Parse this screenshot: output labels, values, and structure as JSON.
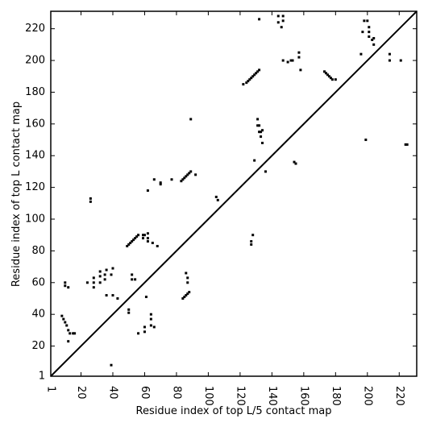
{
  "chart_data": {
    "type": "scatter",
    "xlabel": "Residue index of top L/5 contact map",
    "ylabel": "Residue index of top L contact map",
    "xlim": [
      1,
      231
    ],
    "ylim": [
      1,
      231
    ],
    "xticks": [
      1,
      20,
      40,
      60,
      80,
      100,
      120,
      140,
      160,
      180,
      200,
      220
    ],
    "yticks": [
      1,
      20,
      40,
      60,
      80,
      100,
      120,
      140,
      160,
      180,
      200,
      220
    ],
    "diagonal": true,
    "color": "#000000",
    "x": [
      8,
      9,
      10,
      11,
      12,
      13,
      15,
      16,
      12,
      10,
      10,
      12,
      26,
      26,
      24,
      28,
      28,
      28,
      32,
      32,
      32,
      35,
      35,
      36,
      36,
      39,
      40,
      40,
      43,
      39,
      49,
      50,
      51,
      52,
      53,
      54,
      55,
      56,
      59,
      59,
      60,
      62,
      62,
      62,
      65,
      66,
      68,
      70,
      70,
      77,
      52,
      52,
      54,
      50,
      50,
      56,
      60,
      60,
      61,
      62,
      64,
      64,
      64,
      66,
      83,
      84,
      85,
      86,
      87,
      88,
      89,
      92,
      84,
      85,
      86,
      87,
      88,
      86,
      87,
      87,
      89,
      105,
      106,
      122,
      124,
      125,
      126,
      127,
      128,
      129,
      130,
      131,
      132,
      127,
      127,
      128,
      129,
      131,
      131,
      132,
      132,
      133,
      133,
      134,
      134,
      132,
      136,
      144,
      144,
      146,
      147,
      147,
      147,
      150,
      152,
      153,
      155,
      154,
      157,
      157,
      158,
      173,
      174,
      175,
      176,
      177,
      178,
      180,
      196,
      197,
      198,
      200,
      199,
      201,
      201,
      201,
      203,
      204,
      204,
      214,
      214,
      221,
      224,
      225
    ],
    "y": [
      39,
      37,
      35,
      33,
      30,
      28,
      28,
      28,
      23,
      58,
      60,
      57,
      111,
      113,
      60,
      57,
      60,
      63,
      60,
      64,
      67,
      62,
      65,
      68,
      52,
      65,
      69,
      52,
      50,
      8,
      83,
      84,
      85,
      86,
      87,
      88,
      89,
      90,
      88,
      90,
      90,
      86,
      88,
      91,
      85,
      125,
      83,
      122,
      123,
      125,
      65,
      62,
      62,
      41,
      43,
      28,
      29,
      32,
      51,
      118,
      33,
      37,
      40,
      32,
      124,
      125,
      126,
      127,
      128,
      129,
      130,
      128,
      50,
      51,
      52,
      53,
      54,
      66,
      63,
      60,
      163,
      114,
      112,
      185,
      186,
      187,
      188,
      189,
      190,
      191,
      192,
      193,
      194,
      84,
      86,
      90,
      137,
      163,
      159,
      159,
      155,
      155,
      152,
      156,
      148,
      226,
      130,
      228,
      224,
      221,
      228,
      225,
      200,
      199,
      200,
      200,
      135,
      136,
      205,
      202,
      194,
      193,
      192,
      191,
      190,
      189,
      188,
      188,
      204,
      218,
      225,
      225,
      150,
      221,
      218,
      215,
      213,
      214,
      210,
      204,
      200,
      200,
      147,
      147
    ]
  }
}
